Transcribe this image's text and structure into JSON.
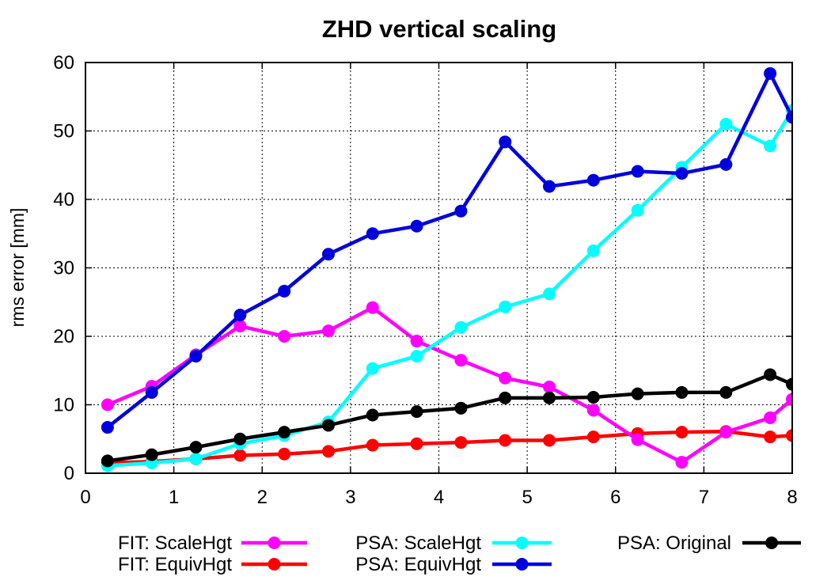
{
  "chart_data": {
    "type": "line",
    "title": "ZHD vertical scaling",
    "xlabel": "",
    "ylabel": "rms error [mm]",
    "xlim": [
      0,
      8
    ],
    "ylim": [
      0,
      60
    ],
    "x_ticks": [
      0,
      1,
      2,
      3,
      4,
      5,
      6,
      7,
      8
    ],
    "y_ticks": [
      0,
      10,
      20,
      30,
      40,
      50,
      60
    ],
    "grid": true,
    "legend_position": "bottom",
    "x": [
      0.25,
      0.75,
      1.25,
      1.75,
      2.25,
      2.75,
      3.25,
      3.75,
      4.25,
      4.75,
      5.25,
      5.75,
      6.25,
      6.75,
      7.25,
      7.75,
      8.0
    ],
    "series": [
      {
        "name": "FIT: ScaleHgt",
        "color": "#ff00ff",
        "values": [
          10.0,
          12.7,
          17.3,
          21.5,
          20.0,
          20.8,
          24.2,
          19.3,
          16.5,
          13.9,
          12.6,
          9.2,
          4.9,
          1.6,
          6.0,
          8.1,
          10.8
        ]
      },
      {
        "name": "FIT: EquivHgt",
        "color": "#ff0000",
        "values": [
          1.5,
          1.7,
          2.1,
          2.6,
          2.8,
          3.2,
          4.1,
          4.3,
          4.5,
          4.8,
          4.8,
          5.3,
          5.8,
          6.0,
          6.1,
          5.3,
          5.5
        ]
      },
      {
        "name": "PSA: ScaleHgt",
        "color": "#00ffff",
        "values": [
          1.1,
          1.5,
          2.1,
          4.3,
          5.5,
          7.5,
          15.3,
          17.1,
          21.3,
          24.3,
          26.2,
          32.5,
          38.4,
          44.7,
          51.0,
          47.8,
          53.0
        ]
      },
      {
        "name": "PSA: EquivHgt",
        "color": "#0000dd",
        "values": [
          6.7,
          11.8,
          17.1,
          23.1,
          26.6,
          32.0,
          35.0,
          36.1,
          38.3,
          48.4,
          41.9,
          42.8,
          44.1,
          43.8,
          45.1,
          58.4,
          52.0
        ]
      },
      {
        "name": "PSA: Original",
        "color": "#000000",
        "values": [
          1.8,
          2.7,
          3.8,
          5.0,
          6.0,
          7.0,
          8.5,
          9.0,
          9.5,
          11.0,
          11.0,
          11.1,
          11.6,
          11.8,
          11.8,
          14.4,
          13.0
        ]
      }
    ]
  }
}
